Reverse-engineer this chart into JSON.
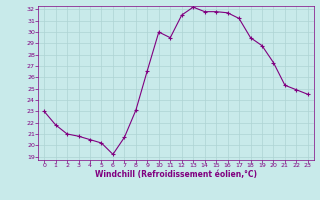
{
  "x": [
    0,
    1,
    2,
    3,
    4,
    5,
    6,
    7,
    8,
    9,
    10,
    11,
    12,
    13,
    14,
    15,
    16,
    17,
    18,
    19,
    20,
    21,
    22,
    23
  ],
  "y": [
    23.0,
    21.8,
    21.0,
    20.8,
    20.5,
    20.2,
    19.2,
    20.7,
    23.1,
    26.6,
    30.0,
    29.5,
    31.5,
    32.2,
    31.8,
    31.8,
    31.7,
    31.2,
    29.5,
    28.8,
    27.3,
    25.3,
    24.9,
    24.5
  ],
  "line_color": "#800080",
  "marker": "+",
  "bg_color": "#c8eaea",
  "grid_color": "#aed4d4",
  "xlabel": "Windchill (Refroidissement éolien,°C)",
  "xlabel_color": "#800080",
  "tick_color": "#800080",
  "spine_color": "#800080",
  "ylim": [
    19,
    32
  ],
  "xlim": [
    -0.5,
    23.5
  ],
  "yticks": [
    19,
    20,
    21,
    22,
    23,
    24,
    25,
    26,
    27,
    28,
    29,
    30,
    31,
    32
  ],
  "xticks": [
    0,
    1,
    2,
    3,
    4,
    5,
    6,
    7,
    8,
    9,
    10,
    11,
    12,
    13,
    14,
    15,
    16,
    17,
    18,
    19,
    20,
    21,
    22,
    23
  ]
}
